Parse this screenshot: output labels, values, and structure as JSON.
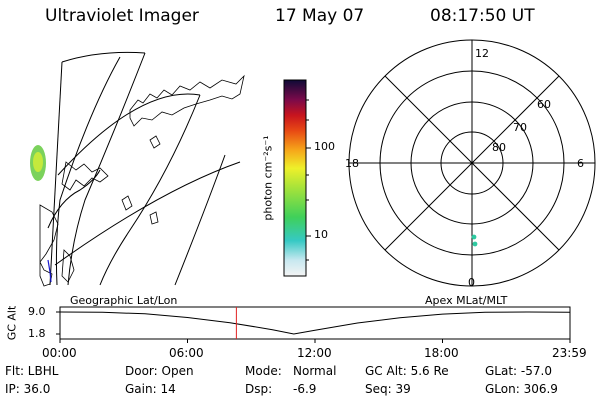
{
  "header": {
    "instrument": "Ultraviolet Imager",
    "date": "17 May 07",
    "time": "08:17:50 UT"
  },
  "colorbar": {
    "unit_label": "photon cm⁻²s⁻¹",
    "ticks": [
      "100",
      "10"
    ],
    "scale": "log"
  },
  "polar_plot": {
    "mlt_labels": {
      "top": "12",
      "left": "18",
      "right": "6",
      "bottom": "0"
    },
    "lat_labels": [
      "60",
      "70",
      "80"
    ]
  },
  "timeline": {
    "left_caption": "Geographic Lat/Lon",
    "right_caption": "Apex MLat/MLT",
    "axis_title": "GC Alt",
    "y_ticks": [
      "9.0",
      "1.8"
    ],
    "x_ticks": [
      "00:00",
      "06:00",
      "12:00",
      "18:00",
      "23:59"
    ],
    "current_time_hours": 8.3,
    "chart_data": {
      "type": "line",
      "x": [
        0,
        2,
        4,
        6,
        8,
        10,
        11,
        12,
        14,
        16,
        18,
        20,
        22,
        23.98
      ],
      "y": [
        9.0,
        8.9,
        8.4,
        7.2,
        5.5,
        3.2,
        1.8,
        3.0,
        5.4,
        7.1,
        8.3,
        8.9,
        9.0,
        8.9
      ],
      "xlim": [
        0,
        24
      ],
      "ylim": [
        1.8,
        9.0
      ]
    }
  },
  "footer": {
    "col1": [
      "Flt: LBHL",
      "IP: 36.0"
    ],
    "col2": [
      "Door: Open",
      "Gain: 14"
    ],
    "col3_label": [
      "Mode:",
      "Dsp:"
    ],
    "col3_value": [
      "Normal",
      "-6.9"
    ],
    "col4": [
      "GC Alt: 5.6 Re",
      "Seq: 39"
    ],
    "col5": [
      "GLat: -57.0",
      "GLon: 306.9"
    ]
  },
  "colors": {
    "ink": "#000000",
    "current_time_marker": "#e02020"
  }
}
